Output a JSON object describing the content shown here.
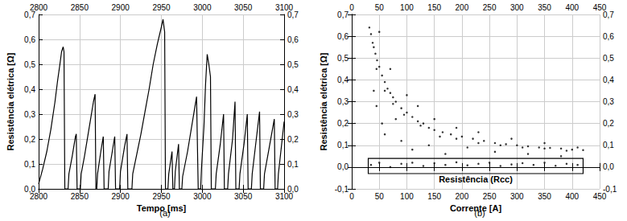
{
  "chart_data": [
    {
      "type": "line",
      "caption": "(a)",
      "x_label": "Tempo [ms]",
      "y_label": "Resistência elétrica [Ω]",
      "color": "#000000",
      "grid": true,
      "xlim": [
        2800,
        3100
      ],
      "xticks": [
        2800,
        2850,
        2900,
        2950,
        3000,
        3050,
        3100
      ],
      "ylim": [
        0,
        0.7
      ],
      "yticks": [
        {
          "value": 0,
          "label": "0,0"
        },
        {
          "value": 0.1,
          "label": "0,1"
        },
        {
          "value": 0.2,
          "label": "0,2"
        },
        {
          "value": 0.3,
          "label": "0,3"
        },
        {
          "value": 0.4,
          "label": "0,4"
        },
        {
          "value": 0.5,
          "label": "0,5"
        },
        {
          "value": 0.6,
          "label": "0,6"
        },
        {
          "value": 0.7,
          "label": "0,7"
        }
      ],
      "x": [
        2800,
        2805,
        2810,
        2815,
        2820,
        2823,
        2826,
        2828,
        2830,
        2831,
        2832,
        2836,
        2837,
        2841,
        2845,
        2846,
        2847,
        2851,
        2852,
        2856,
        2860,
        2864,
        2867,
        2869,
        2870,
        2871,
        2872,
        2876,
        2879,
        2880,
        2885,
        2886,
        2890,
        2893,
        2894,
        2899,
        2900,
        2905,
        2908,
        2909,
        2914,
        2915,
        2920,
        2925,
        2930,
        2935,
        2940,
        2945,
        2950,
        2952,
        2954,
        2955,
        2958,
        2959,
        2963,
        2964,
        2966,
        2967,
        2971,
        2972,
        2975,
        2976,
        2982,
        2988,
        2993,
        2995,
        2998,
        2999,
        3002,
        3004,
        3006,
        3008,
        3010,
        3011,
        3016,
        3017,
        3022,
        3026,
        3027,
        3031,
        3032,
        3037,
        3040,
        3041,
        3045,
        3046,
        3051,
        3055,
        3056,
        3060,
        3061,
        3066,
        3070,
        3071,
        3075,
        3076,
        3082,
        3088,
        3089,
        3092,
        3093,
        3097,
        3100
      ],
      "values": [
        0.02,
        0.08,
        0.15,
        0.24,
        0.35,
        0.43,
        0.5,
        0.55,
        0.57,
        0.55,
        0.0,
        0.0,
        0.06,
        0.13,
        0.21,
        0.22,
        0.0,
        0.0,
        0.06,
        0.13,
        0.21,
        0.29,
        0.35,
        0.38,
        0.0,
        0.0,
        0.06,
        0.15,
        0.21,
        0.0,
        0.0,
        0.07,
        0.15,
        0.21,
        0.0,
        0.0,
        0.07,
        0.17,
        0.22,
        0.0,
        0.0,
        0.06,
        0.14,
        0.22,
        0.31,
        0.4,
        0.5,
        0.58,
        0.65,
        0.68,
        0.63,
        0.0,
        0.0,
        0.06,
        0.15,
        0.0,
        0.0,
        0.07,
        0.18,
        0.0,
        0.0,
        0.05,
        0.15,
        0.27,
        0.37,
        0.0,
        0.0,
        0.08,
        0.25,
        0.42,
        0.54,
        0.5,
        0.45,
        0.0,
        0.0,
        0.06,
        0.18,
        0.3,
        0.0,
        0.0,
        0.06,
        0.2,
        0.35,
        0.0,
        0.0,
        0.06,
        0.18,
        0.3,
        0.0,
        0.0,
        0.06,
        0.2,
        0.31,
        0.0,
        0.0,
        0.06,
        0.17,
        0.28,
        0.0,
        0.0,
        0.06,
        0.18,
        0.27
      ]
    },
    {
      "type": "scatter",
      "caption": "(b)",
      "x_label": "Corrente [A]",
      "y_label": "Resistência elétrica [Ω]",
      "color": "#000000",
      "grid": true,
      "xlim": [
        0,
        450
      ],
      "xticks": [
        0,
        50,
        100,
        150,
        200,
        250,
        300,
        350,
        400,
        450
      ],
      "ylim": [
        -0.1,
        0.7
      ],
      "yticks": [
        {
          "value": -0.1,
          "label": "-0,1"
        },
        {
          "value": 0,
          "label": "0,0"
        },
        {
          "value": 0.1,
          "label": "0,1"
        },
        {
          "value": 0.2,
          "label": "0,2"
        },
        {
          "value": 0.3,
          "label": "0,3"
        },
        {
          "value": 0.4,
          "label": "0,4"
        },
        {
          "value": 0.5,
          "label": "0,5"
        },
        {
          "value": 0.6,
          "label": "0,6"
        },
        {
          "value": 0.7,
          "label": "0,7"
        }
      ],
      "x": [
        32,
        35,
        38,
        40,
        43,
        46,
        50,
        55,
        60,
        65,
        70,
        75,
        80,
        90,
        100,
        110,
        120,
        130,
        140,
        150,
        165,
        180,
        200,
        220,
        240,
        260,
        280,
        300,
        320,
        340,
        360,
        380,
        400,
        420,
        40,
        45,
        50,
        55,
        60,
        70,
        80,
        90,
        100,
        110,
        120,
        140,
        150,
        170,
        190,
        210,
        230,
        260,
        290,
        320,
        350,
        380,
        410,
        45,
        60,
        75,
        95,
        125,
        160,
        190,
        230,
        270,
        310,
        350,
        390,
        35,
        50,
        70,
        90,
        110,
        130,
        150,
        170,
        190,
        210,
        230,
        250,
        270,
        290,
        310,
        330,
        350,
        370,
        390,
        410
      ],
      "values": [
        0.64,
        0.61,
        0.57,
        0.55,
        0.52,
        0.49,
        0.46,
        0.42,
        0.39,
        0.36,
        0.34,
        0.32,
        0.3,
        0.27,
        0.25,
        0.23,
        0.21,
        0.2,
        0.18,
        0.17,
        0.16,
        0.15,
        0.14,
        0.13,
        0.12,
        0.11,
        0.105,
        0.1,
        0.095,
        0.09,
        0.088,
        0.085,
        0.08,
        0.078,
        0.35,
        0.28,
        0.62,
        0.2,
        0.15,
        0.45,
        0.22,
        0.12,
        0.33,
        0.08,
        0.28,
        0.1,
        0.22,
        0.06,
        0.18,
        0.09,
        0.16,
        0.07,
        0.13,
        0.06,
        0.11,
        0.05,
        0.09,
        0.45,
        0.35,
        0.29,
        0.24,
        0.19,
        0.14,
        0.13,
        0.11,
        0.1,
        0.09,
        0.085,
        0.075,
        0.01,
        0.02,
        0.0,
        0.015,
        0.02,
        0.005,
        0.018,
        0.01,
        0.022,
        0.008,
        0.015,
        0.02,
        0.005,
        0.012,
        0.018,
        0.01,
        0.02,
        0.006,
        0.015,
        0.01
      ],
      "annotation": {
        "text": "Resistência (Rcc)",
        "x": [
          30,
          420
        ],
        "y": [
          -0.03,
          0.04
        ]
      }
    }
  ]
}
